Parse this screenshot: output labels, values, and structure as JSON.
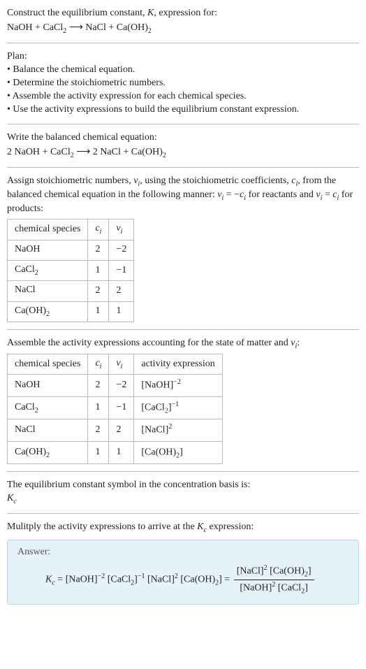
{
  "prompt": {
    "line1_pre": "Construct the equilibrium constant, ",
    "line1_K": "K",
    "line1_post": ", expression for:",
    "reaction_lhs1": "NaOH + CaCl",
    "reaction_lhs1_sub": "2",
    "reaction_arrow": " ⟶ ",
    "reaction_rhs1": "NaCl + Ca(OH)",
    "reaction_rhs1_sub": "2"
  },
  "plan": {
    "heading": "Plan:",
    "items": [
      "• Balance the chemical equation.",
      "• Determine the stoichiometric numbers.",
      "• Assemble the activity expression for each chemical species.",
      "• Use the activity expressions to build the equilibrium constant expression."
    ]
  },
  "balanced": {
    "heading": "Write the balanced chemical equation:",
    "lhs_pre": "2 NaOH + CaCl",
    "lhs_sub": "2",
    "arrow": " ⟶ ",
    "rhs_pre": "2 NaCl + Ca(OH)",
    "rhs_sub": "2"
  },
  "stoich_intro": {
    "t1": "Assign stoichiometric numbers, ",
    "nu": "ν",
    "nu_i": "i",
    "t2": ", using the stoichiometric coefficients, ",
    "c": "c",
    "c_i": "i",
    "t3": ", from the balanced chemical equation in the following manner: ",
    "eq_react_lhs": "ν",
    "eq_react_lhs_i": "i",
    "eq_react_eq": " = −",
    "eq_react_c": "c",
    "eq_react_c_i": "i",
    "t4": " for reactants and ",
    "eq_prod_lhs": "ν",
    "eq_prod_lhs_i": "i",
    "eq_prod_eq": " = ",
    "eq_prod_c": "c",
    "eq_prod_c_i": "i",
    "t5": " for products:"
  },
  "stoich_table": {
    "h1": "chemical species",
    "h2_sym": "c",
    "h2_i": "i",
    "h3_sym": "ν",
    "h3_i": "i",
    "rows": [
      {
        "sp_pre": "NaOH",
        "sp_sub": "",
        "c": "2",
        "nu": "−2"
      },
      {
        "sp_pre": "CaCl",
        "sp_sub": "2",
        "c": "1",
        "nu": "−1"
      },
      {
        "sp_pre": "NaCl",
        "sp_sub": "",
        "c": "2",
        "nu": "2"
      },
      {
        "sp_pre": "Ca(OH)",
        "sp_sub": "2",
        "c": "1",
        "nu": "1"
      }
    ]
  },
  "activity_intro": {
    "t1": "Assemble the activity expressions accounting for the state of matter and ",
    "nu": "ν",
    "nu_i": "i",
    "t2": ":"
  },
  "activity_table": {
    "h1": "chemical species",
    "h2_sym": "c",
    "h2_i": "i",
    "h3_sym": "ν",
    "h3_i": "i",
    "h4": "activity expression",
    "rows": [
      {
        "sp_pre": "NaOH",
        "sp_sub": "",
        "c": "2",
        "nu": "−2",
        "ae_pre": "[NaOH]",
        "ae_sub": "",
        "ae_sup": "−2"
      },
      {
        "sp_pre": "CaCl",
        "sp_sub": "2",
        "c": "1",
        "nu": "−1",
        "ae_pre": "[CaCl",
        "ae_sub": "2",
        "ae_post": "]",
        "ae_sup": "−1"
      },
      {
        "sp_pre": "NaCl",
        "sp_sub": "",
        "c": "2",
        "nu": "2",
        "ae_pre": "[NaCl]",
        "ae_sub": "",
        "ae_sup": "2"
      },
      {
        "sp_pre": "Ca(OH)",
        "sp_sub": "2",
        "c": "1",
        "nu": "1",
        "ae_pre": "[Ca(OH)",
        "ae_sub": "2",
        "ae_post": "]",
        "ae_sup": ""
      }
    ]
  },
  "kc_intro": {
    "t1": "The equilibrium constant symbol in the concentration basis is:",
    "K": "K",
    "K_sub": "c"
  },
  "multiply": {
    "t1": "Mulitply the activity expressions to arrive at the ",
    "K": "K",
    "K_sub": "c",
    "t2": " expression:"
  },
  "answer": {
    "label": "Answer:",
    "K": "K",
    "K_sub": "c",
    "eq": " = ",
    "p1_pre": "[NaOH]",
    "p1_sup": "−2",
    "p2_pre": " [CaCl",
    "p2_sub": "2",
    "p2_post": "]",
    "p2_sup": "−1",
    "p3_pre": " [NaCl]",
    "p3_sup": "2",
    "p4_pre": " [Ca(OH)",
    "p4_sub": "2",
    "p4_post": "] = ",
    "num1_pre": "[NaCl]",
    "num1_sup": "2",
    "num2_pre": " [Ca(OH)",
    "num2_sub": "2",
    "num2_post": "]",
    "den1_pre": "[NaOH]",
    "den1_sup": "2",
    "den2_pre": " [CaCl",
    "den2_sub": "2",
    "den2_post": "]"
  }
}
